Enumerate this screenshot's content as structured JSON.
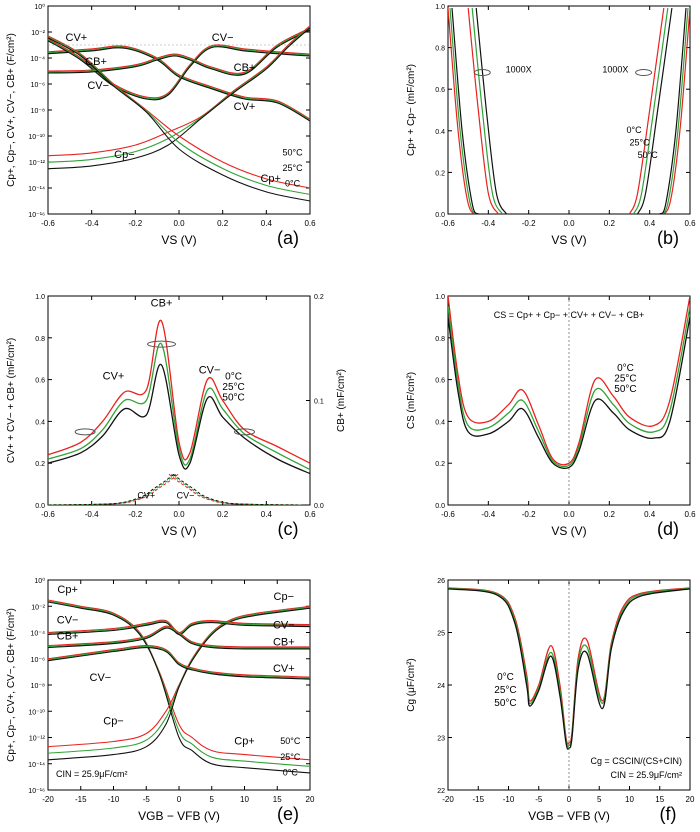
{
  "colors": {
    "c0": "#e8231f",
    "c25": "#2fa336",
    "c50": "#111111",
    "axis": "#000000"
  },
  "chart_data": [
    {
      "id": "a",
      "type": "line",
      "scale_y": "log",
      "panel_label": "(a)",
      "ylabel": "Cp+, Cp−, CV+, CV−, CB+ (F/cm²)",
      "xlabel": "VS (V)",
      "xlim": [
        -0.6,
        0.6
      ],
      "ylim_exp": [
        -16,
        0
      ],
      "xticks": [
        "-0.6",
        "-0.4",
        "-0.2",
        "0.0",
        "0.2",
        "0.4",
        "0.6"
      ],
      "yticks": [
        "10⁻¹⁶",
        "10⁻¹⁴",
        "10⁻¹²",
        "10⁻¹⁰",
        "10⁻⁸",
        "10⁻⁶",
        "10⁻⁴",
        "10⁻²",
        "10⁰"
      ],
      "curve_labels": [
        "CV+",
        "CV−",
        "CB+",
        "CB+",
        "CV−",
        "CV+",
        "Cp−",
        "Cp+"
      ],
      "temp_labels": [
        "50°C",
        "25°C",
        "0°C"
      ],
      "series": [
        {
          "name": "CV+ 0°C",
          "x": [
            -0.6,
            -0.4,
            -0.25,
            -0.1,
            0.0,
            0.15,
            0.3,
            0.45,
            0.6
          ],
          "y": [
            0.0003,
            0.0005,
            0.0008,
            0.0001,
            5e-06,
            6e-07,
            1e-07,
            5e-08,
            2e-09
          ]
        },
        {
          "name": "CV− 0°C",
          "x": [
            -0.6,
            -0.45,
            -0.3,
            -0.15,
            -0.05,
            0.05,
            0.15,
            0.3,
            0.45,
            0.6
          ],
          "y": [
            0.003,
            0.0001,
            1e-06,
            1e-07,
            2e-07,
            3e-05,
            0.0009,
            0.0005,
            0.0003,
            0.0002
          ]
        },
        {
          "name": "CB+ 0°C",
          "x": [
            -0.6,
            -0.4,
            -0.2,
            -0.1,
            -0.02,
            0.05,
            0.15,
            0.3,
            0.45,
            0.6
          ],
          "y": [
            1e-05,
            1.2e-05,
            3e-05,
            0.0001,
            0.0002,
            0.0001,
            2e-05,
            8e-06,
            0.001,
            0.02
          ]
        },
        {
          "name": "Cp− 0°C",
          "x": [
            -0.6,
            -0.4,
            -0.2,
            -0.05,
            0.1,
            0.25,
            0.4,
            0.5,
            0.6
          ],
          "y": [
            3e-12,
            5e-12,
            2e-11,
            2e-10,
            3e-09,
            3e-07,
            2e-05,
            0.001,
            0.03
          ]
        },
        {
          "name": "Cp+ 0°C",
          "x": [
            -0.6,
            -0.45,
            -0.3,
            -0.15,
            0.0,
            0.2,
            0.4,
            0.6
          ],
          "y": [
            0.005,
            0.0002,
            1e-06,
            1e-08,
            1e-10,
            1e-12,
            5e-14,
            1e-14
          ]
        }
      ]
    },
    {
      "id": "b",
      "type": "line",
      "panel_label": "(b)",
      "ylabel": "Cp+ + Cp− (mF/cm²)",
      "xlabel": "VS (V)",
      "xlim": [
        -0.6,
        0.6
      ],
      "ylim": [
        0,
        1.0
      ],
      "xticks": [
        "-0.6",
        "-0.4",
        "-0.2",
        "0.0",
        "0.2",
        "0.4",
        "0.6"
      ],
      "yticks": [
        "0.0",
        "0.2",
        "0.4",
        "0.6",
        "0.8",
        "1.0"
      ],
      "annotations": [
        "1000X",
        "1000X",
        "0°C",
        "25°C",
        "50°C"
      ]
    },
    {
      "id": "c",
      "type": "line",
      "panel_label": "(c)",
      "ylabel": "CV+ + CV− + CB+ (mF/cm²)",
      "y2label": "CB+ (mF/cm²)",
      "xlabel": "VS (V)",
      "xlim": [
        -0.6,
        0.6
      ],
      "ylim": [
        0,
        1.0
      ],
      "y2lim": [
        0,
        0.2
      ],
      "xticks": [
        "-0.6",
        "-0.4",
        "-0.2",
        "0.0",
        "0.2",
        "0.4",
        "0.6"
      ],
      "yticks": [
        "0.0",
        "0.2",
        "0.4",
        "0.6",
        "0.8",
        "1.0"
      ],
      "y2ticks": [
        "0.0",
        "0.1",
        "0.2"
      ],
      "curve_labels": [
        "CB+",
        "CV+",
        "CV−",
        "CV+",
        "CV−"
      ],
      "temp_labels": [
        "0°C",
        "25°C",
        "50°C"
      ],
      "series": [
        {
          "name": "0°C",
          "x": [
            -0.6,
            -0.45,
            -0.35,
            -0.25,
            -0.15,
            -0.08,
            0.0,
            0.05,
            0.13,
            0.2,
            0.3,
            0.45,
            0.6
          ],
          "y": [
            0.24,
            0.3,
            0.4,
            0.54,
            0.55,
            0.88,
            0.3,
            0.25,
            0.6,
            0.5,
            0.36,
            0.28,
            0.2
          ]
        },
        {
          "name": "25°C",
          "x": [
            -0.6,
            -0.45,
            -0.35,
            -0.25,
            -0.15,
            -0.08,
            0.0,
            0.05,
            0.13,
            0.2,
            0.3,
            0.45,
            0.6
          ],
          "y": [
            0.22,
            0.27,
            0.36,
            0.5,
            0.5,
            0.77,
            0.27,
            0.22,
            0.55,
            0.46,
            0.34,
            0.25,
            0.17
          ]
        },
        {
          "name": "50°C",
          "x": [
            -0.6,
            -0.45,
            -0.35,
            -0.25,
            -0.15,
            -0.08,
            0.0,
            0.05,
            0.13,
            0.2,
            0.3,
            0.45,
            0.6
          ],
          "y": [
            0.2,
            0.25,
            0.33,
            0.46,
            0.43,
            0.67,
            0.24,
            0.2,
            0.51,
            0.42,
            0.32,
            0.22,
            0.15
          ]
        }
      ]
    },
    {
      "id": "d",
      "type": "line",
      "panel_label": "(d)",
      "ylabel": "CS (mF/cm²)",
      "xlabel": "VS (V)",
      "xlim": [
        -0.6,
        0.6
      ],
      "ylim": [
        0,
        1.0
      ],
      "xticks": [
        "-0.6",
        "-0.4",
        "-0.2",
        "0.0",
        "0.2",
        "0.4",
        "0.6"
      ],
      "yticks": [
        "0.0",
        "0.2",
        "0.4",
        "0.6",
        "0.8",
        "1.0"
      ],
      "formula": "CS = Cp+ + Cp− + CV+ + CV− + CB+",
      "temp_labels": [
        "0°C",
        "25°C",
        "50°C"
      ],
      "series": [
        {
          "name": "0°C",
          "x": [
            -0.6,
            -0.55,
            -0.5,
            -0.4,
            -0.3,
            -0.23,
            -0.15,
            -0.08,
            0.0,
            0.05,
            0.13,
            0.22,
            0.3,
            0.42,
            0.5,
            0.6
          ],
          "y": [
            1.0,
            0.62,
            0.42,
            0.4,
            0.48,
            0.55,
            0.38,
            0.22,
            0.2,
            0.3,
            0.6,
            0.52,
            0.42,
            0.38,
            0.5,
            1.0
          ]
        },
        {
          "name": "25°C",
          "x": [
            -0.6,
            -0.55,
            -0.5,
            -0.4,
            -0.3,
            -0.23,
            -0.15,
            -0.08,
            0.0,
            0.05,
            0.13,
            0.22,
            0.3,
            0.42,
            0.5,
            0.6
          ],
          "y": [
            0.95,
            0.58,
            0.38,
            0.37,
            0.44,
            0.5,
            0.35,
            0.21,
            0.19,
            0.28,
            0.55,
            0.48,
            0.39,
            0.35,
            0.45,
            0.95
          ]
        },
        {
          "name": "50°C",
          "x": [
            -0.6,
            -0.55,
            -0.5,
            -0.4,
            -0.3,
            -0.23,
            -0.15,
            -0.08,
            0.0,
            0.05,
            0.13,
            0.22,
            0.3,
            0.42,
            0.5,
            0.6
          ],
          "y": [
            0.9,
            0.54,
            0.35,
            0.34,
            0.4,
            0.46,
            0.32,
            0.2,
            0.18,
            0.26,
            0.5,
            0.44,
            0.36,
            0.32,
            0.4,
            0.9
          ]
        }
      ]
    },
    {
      "id": "e",
      "type": "line",
      "scale_y": "log",
      "panel_label": "(e)",
      "ylabel": "Cp+, Cp−, CV+, CV−, CB+ (F/cm²)",
      "xlabel": "VGB − VFB (V)",
      "xlim": [
        -20,
        20
      ],
      "ylim_exp": [
        -16,
        0
      ],
      "xticks": [
        "-20",
        "-15",
        "-10",
        "-5",
        "0",
        "5",
        "10",
        "15",
        "20"
      ],
      "yticks": [
        "10⁻¹⁶",
        "10⁻¹⁴",
        "10⁻¹²",
        "10⁻¹⁰",
        "10⁻⁸",
        "10⁻⁶",
        "10⁻⁴",
        "10⁻²",
        "10⁰"
      ],
      "curve_labels": [
        "Cp+",
        "CV−",
        "CB+",
        "CV−",
        "Cp−",
        "Cp−",
        "CV−",
        "CB+",
        "CV+",
        "Cp+"
      ],
      "temp_labels": [
        "50°C",
        "25°C",
        "0°C"
      ],
      "annotation": "CIN = 25.9μF/cm²",
      "series": [
        {
          "name": "Cp+ 0°C",
          "x": [
            -20,
            -15,
            -10,
            -6,
            -3,
            0,
            2,
            5,
            10,
            20
          ],
          "y": [
            0.03,
            0.01,
            0.003,
            0.0001,
            1e-07,
            1e-11,
            1e-12,
            1e-13,
            5e-14,
            2e-14
          ]
        },
        {
          "name": "Cp− 0°C",
          "x": [
            -20,
            -10,
            -5,
            -2,
            0,
            2,
            5,
            8,
            12,
            20
          ],
          "y": [
            2e-13,
            5e-13,
            2e-12,
            1e-10,
            1e-08,
            1e-06,
            0.0001,
            0.001,
            0.003,
            0.01
          ]
        },
        {
          "name": "CV− 0°C",
          "x": [
            -20,
            -10,
            -5,
            -2,
            0,
            2,
            5,
            10,
            20
          ],
          "y": [
            0.0001,
            0.0002,
            0.0005,
            0.0008,
            0.0001,
            0.0005,
            0.0008,
            0.0005,
            0.0004
          ]
        },
        {
          "name": "CB+ 0°C",
          "x": [
            -20,
            -10,
            -5,
            -2,
            0,
            2,
            5,
            10,
            20
          ],
          "y": [
            1e-05,
            2e-05,
            5e-05,
            0.0003,
            0.0001,
            2e-05,
            1e-05,
            8e-06,
            8e-06
          ]
        },
        {
          "name": "CV+ 0°C",
          "x": [
            -20,
            -10,
            -5,
            -2,
            0,
            2,
            5,
            10,
            20
          ],
          "y": [
            1e-06,
            5e-06,
            1e-05,
            5e-06,
            5e-07,
            2e-07,
            1e-07,
            6e-08,
            4e-08
          ]
        }
      ]
    },
    {
      "id": "f",
      "type": "line",
      "panel_label": "(f)",
      "ylabel": "Cg (μF/cm²)",
      "xlabel": "VGB − VFB (V)",
      "xlim": [
        -20,
        20
      ],
      "ylim": [
        22,
        26
      ],
      "xticks": [
        "-20",
        "-15",
        "-10",
        "-5",
        "0",
        "5",
        "10",
        "15",
        "20"
      ],
      "yticks": [
        "22",
        "23",
        "24",
        "25",
        "26"
      ],
      "formula": "Cg = CSCIN/(CS+CIN)",
      "annotation": "CIN = 25.9μF/cm²",
      "temp_labels": [
        "0°C",
        "25°C",
        "50°C"
      ],
      "series": [
        {
          "name": "0°C",
          "x": [
            -20,
            -12,
            -9,
            -7,
            -6.5,
            -5,
            -3,
            -1.5,
            -0.5,
            0,
            0.5,
            1.5,
            3,
            5.5,
            7,
            9,
            12,
            20
          ],
          "y": [
            25.85,
            25.75,
            25.3,
            24.2,
            23.7,
            24.0,
            24.75,
            24.0,
            23.0,
            22.9,
            23.1,
            24.5,
            24.85,
            23.7,
            24.8,
            25.5,
            25.75,
            25.85
          ]
        },
        {
          "name": "25°C",
          "x": [
            -20,
            -12,
            -9,
            -7,
            -6.5,
            -5,
            -3,
            -1.5,
            -0.5,
            0,
            0.5,
            1.5,
            3,
            5.5,
            7,
            9,
            12,
            20
          ],
          "y": [
            25.84,
            25.74,
            25.25,
            24.1,
            23.65,
            23.95,
            24.62,
            23.9,
            22.95,
            22.85,
            23.05,
            24.4,
            24.72,
            23.65,
            24.75,
            25.45,
            25.73,
            25.84
          ]
        },
        {
          "name": "50°C",
          "x": [
            -20,
            -12,
            -9,
            -7,
            -6.5,
            -5,
            -3,
            -1.5,
            -0.5,
            0,
            0.5,
            1.5,
            3,
            5.5,
            7,
            9,
            12,
            20
          ],
          "y": [
            25.83,
            25.72,
            25.2,
            24.0,
            23.6,
            23.9,
            24.55,
            23.8,
            22.9,
            22.8,
            23.0,
            24.3,
            24.6,
            23.55,
            24.7,
            25.4,
            25.7,
            25.83
          ]
        }
      ]
    }
  ]
}
